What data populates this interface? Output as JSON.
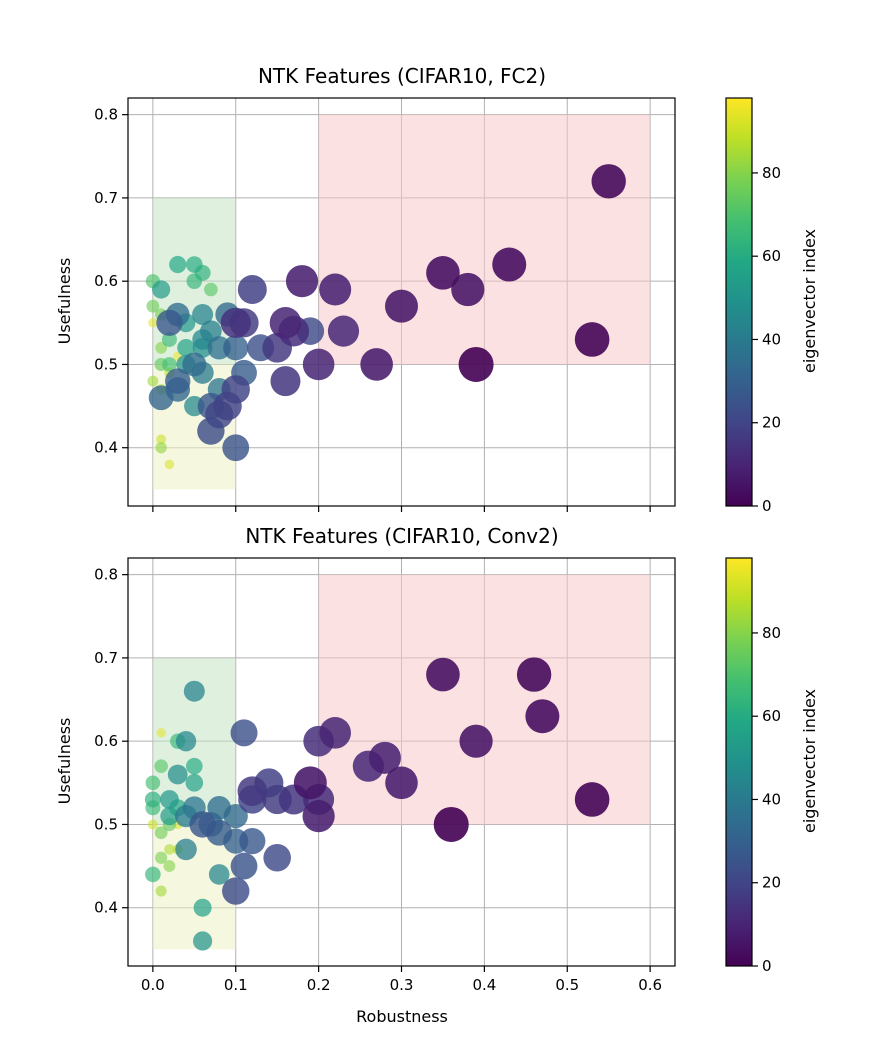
{
  "chart_data": [
    {
      "type": "scatter",
      "title": "NTK Features (CIFAR10, FC2)",
      "xlabel": "",
      "ylabel": "Usefulness",
      "xlim": [
        -0.03,
        0.63
      ],
      "ylim": [
        0.33,
        0.82
      ],
      "xticks": [
        0.0,
        0.1,
        0.2,
        0.3,
        0.4,
        0.5,
        0.6
      ],
      "xtick_labels": [
        "",
        "",
        "",
        "",
        "",
        "",
        ""
      ],
      "yticks": [
        0.4,
        0.5,
        0.6,
        0.7,
        0.8
      ],
      "ytick_labels": [
        "0.4",
        "0.5",
        "0.6",
        "0.7",
        "0.8"
      ],
      "grid": true,
      "colorbar": {
        "label": "eigenvector index",
        "range": [
          0,
          98
        ],
        "ticks": [
          0,
          20,
          40,
          60,
          80
        ],
        "tick_labels": [
          "0",
          "20",
          "40",
          "60",
          "80"
        ],
        "colormap": "viridis"
      },
      "regions": [
        {
          "x": [
            0.2,
            0.6
          ],
          "y": [
            0.5,
            0.8
          ],
          "color": "#f8c8c8"
        },
        {
          "x": [
            0.0,
            0.1
          ],
          "y": [
            0.5,
            0.7
          ],
          "color": "#c4e4c4"
        },
        {
          "x": [
            0.0,
            0.1
          ],
          "y": [
            0.35,
            0.5
          ],
          "color": "#eef1c4"
        }
      ],
      "points": [
        {
          "x": 0.55,
          "y": 0.72,
          "c": 2
        },
        {
          "x": 0.43,
          "y": 0.62,
          "c": 3
        },
        {
          "x": 0.35,
          "y": 0.61,
          "c": 4
        },
        {
          "x": 0.38,
          "y": 0.59,
          "c": 5
        },
        {
          "x": 0.53,
          "y": 0.53,
          "c": 1
        },
        {
          "x": 0.39,
          "y": 0.5,
          "c": 0
        },
        {
          "x": 0.3,
          "y": 0.57,
          "c": 6
        },
        {
          "x": 0.27,
          "y": 0.5,
          "c": 7
        },
        {
          "x": 0.18,
          "y": 0.6,
          "c": 8
        },
        {
          "x": 0.22,
          "y": 0.59,
          "c": 9
        },
        {
          "x": 0.2,
          "y": 0.5,
          "c": 10
        },
        {
          "x": 0.23,
          "y": 0.54,
          "c": 11
        },
        {
          "x": 0.16,
          "y": 0.55,
          "c": 10
        },
        {
          "x": 0.17,
          "y": 0.54,
          "c": 13
        },
        {
          "x": 0.19,
          "y": 0.54,
          "c": 22
        },
        {
          "x": 0.16,
          "y": 0.48,
          "c": 15
        },
        {
          "x": 0.15,
          "y": 0.52,
          "c": 16
        },
        {
          "x": 0.12,
          "y": 0.59,
          "c": 18
        },
        {
          "x": 0.13,
          "y": 0.52,
          "c": 24
        },
        {
          "x": 0.1,
          "y": 0.55,
          "c": 14
        },
        {
          "x": 0.11,
          "y": 0.55,
          "c": 17
        },
        {
          "x": 0.1,
          "y": 0.47,
          "c": 20
        },
        {
          "x": 0.11,
          "y": 0.49,
          "c": 28
        },
        {
          "x": 0.1,
          "y": 0.4,
          "c": 25
        },
        {
          "x": 0.1,
          "y": 0.52,
          "c": 30
        },
        {
          "x": 0.09,
          "y": 0.56,
          "c": 33
        },
        {
          "x": 0.08,
          "y": 0.52,
          "c": 36
        },
        {
          "x": 0.09,
          "y": 0.45,
          "c": 19
        },
        {
          "x": 0.08,
          "y": 0.44,
          "c": 21
        },
        {
          "x": 0.07,
          "y": 0.42,
          "c": 23
        },
        {
          "x": 0.07,
          "y": 0.45,
          "c": 26
        },
        {
          "x": 0.08,
          "y": 0.47,
          "c": 38
        },
        {
          "x": 0.07,
          "y": 0.54,
          "c": 42
        },
        {
          "x": 0.06,
          "y": 0.56,
          "c": 44
        },
        {
          "x": 0.06,
          "y": 0.49,
          "c": 40
        },
        {
          "x": 0.05,
          "y": 0.45,
          "c": 46
        },
        {
          "x": 0.06,
          "y": 0.52,
          "c": 48
        },
        {
          "x": 0.05,
          "y": 0.5,
          "c": 34
        },
        {
          "x": 0.04,
          "y": 0.5,
          "c": 50
        },
        {
          "x": 0.03,
          "y": 0.48,
          "c": 29
        },
        {
          "x": 0.03,
          "y": 0.47,
          "c": 32
        },
        {
          "x": 0.03,
          "y": 0.56,
          "c": 35
        },
        {
          "x": 0.02,
          "y": 0.55,
          "c": 27
        },
        {
          "x": 0.04,
          "y": 0.55,
          "c": 52
        },
        {
          "x": 0.03,
          "y": 0.62,
          "c": 58
        },
        {
          "x": 0.05,
          "y": 0.62,
          "c": 60
        },
        {
          "x": 0.06,
          "y": 0.61,
          "c": 62
        },
        {
          "x": 0.05,
          "y": 0.6,
          "c": 64
        },
        {
          "x": 0.07,
          "y": 0.59,
          "c": 72
        },
        {
          "x": 0.01,
          "y": 0.59,
          "c": 54
        },
        {
          "x": 0.0,
          "y": 0.6,
          "c": 70
        },
        {
          "x": 0.0,
          "y": 0.57,
          "c": 76
        },
        {
          "x": 0.01,
          "y": 0.56,
          "c": 78
        },
        {
          "x": 0.02,
          "y": 0.53,
          "c": 66
        },
        {
          "x": 0.04,
          "y": 0.52,
          "c": 56
        },
        {
          "x": 0.01,
          "y": 0.52,
          "c": 80
        },
        {
          "x": 0.01,
          "y": 0.5,
          "c": 74
        },
        {
          "x": 0.02,
          "y": 0.5,
          "c": 68
        },
        {
          "x": 0.0,
          "y": 0.48,
          "c": 84
        },
        {
          "x": 0.01,
          "y": 0.47,
          "c": 86
        },
        {
          "x": 0.01,
          "y": 0.46,
          "c": 31
        },
        {
          "x": 0.02,
          "y": 0.49,
          "c": 88
        },
        {
          "x": 0.01,
          "y": 0.41,
          "c": 90
        },
        {
          "x": 0.01,
          "y": 0.4,
          "c": 82
        },
        {
          "x": 0.02,
          "y": 0.38,
          "c": 92
        },
        {
          "x": 0.0,
          "y": 0.55,
          "c": 94
        },
        {
          "x": 0.03,
          "y": 0.51,
          "c": 96
        },
        {
          "x": 0.06,
          "y": 0.53,
          "c": 45
        }
      ]
    },
    {
      "type": "scatter",
      "title": "NTK Features (CIFAR10, Conv2)",
      "xlabel": "Robustness",
      "ylabel": "Usefulness",
      "xlim": [
        -0.03,
        0.63
      ],
      "ylim": [
        0.33,
        0.82
      ],
      "xticks": [
        0.0,
        0.1,
        0.2,
        0.3,
        0.4,
        0.5,
        0.6
      ],
      "xtick_labels": [
        "0.0",
        "0.1",
        "0.2",
        "0.3",
        "0.4",
        "0.5",
        "0.6"
      ],
      "yticks": [
        0.4,
        0.5,
        0.6,
        0.7,
        0.8
      ],
      "ytick_labels": [
        "0.4",
        "0.5",
        "0.6",
        "0.7",
        "0.8"
      ],
      "grid": true,
      "colorbar": {
        "label": "eigenvector index",
        "range": [
          0,
          98
        ],
        "ticks": [
          0,
          20,
          40,
          60,
          80
        ],
        "tick_labels": [
          "0",
          "20",
          "40",
          "60",
          "80"
        ],
        "colormap": "viridis"
      },
      "regions": [
        {
          "x": [
            0.2,
            0.6
          ],
          "y": [
            0.5,
            0.8
          ],
          "color": "#f8c8c8"
        },
        {
          "x": [
            0.0,
            0.1
          ],
          "y": [
            0.5,
            0.7
          ],
          "color": "#c4e4c4"
        },
        {
          "x": [
            0.0,
            0.1
          ],
          "y": [
            0.35,
            0.5
          ],
          "color": "#eef1c4"
        }
      ],
      "points": [
        {
          "x": 0.35,
          "y": 0.68,
          "c": 4
        },
        {
          "x": 0.46,
          "y": 0.68,
          "c": 2
        },
        {
          "x": 0.47,
          "y": 0.63,
          "c": 3
        },
        {
          "x": 0.39,
          "y": 0.6,
          "c": 5
        },
        {
          "x": 0.53,
          "y": 0.53,
          "c": 1
        },
        {
          "x": 0.36,
          "y": 0.5,
          "c": 0
        },
        {
          "x": 0.3,
          "y": 0.55,
          "c": 7
        },
        {
          "x": 0.28,
          "y": 0.58,
          "c": 9
        },
        {
          "x": 0.26,
          "y": 0.57,
          "c": 11
        },
        {
          "x": 0.22,
          "y": 0.61,
          "c": 10
        },
        {
          "x": 0.2,
          "y": 0.6,
          "c": 13
        },
        {
          "x": 0.19,
          "y": 0.55,
          "c": 6
        },
        {
          "x": 0.2,
          "y": 0.53,
          "c": 12
        },
        {
          "x": 0.2,
          "y": 0.51,
          "c": 8
        },
        {
          "x": 0.17,
          "y": 0.53,
          "c": 15
        },
        {
          "x": 0.15,
          "y": 0.53,
          "c": 17
        },
        {
          "x": 0.14,
          "y": 0.55,
          "c": 18
        },
        {
          "x": 0.12,
          "y": 0.54,
          "c": 16
        },
        {
          "x": 0.12,
          "y": 0.53,
          "c": 20
        },
        {
          "x": 0.11,
          "y": 0.61,
          "c": 24
        },
        {
          "x": 0.15,
          "y": 0.46,
          "c": 22
        },
        {
          "x": 0.11,
          "y": 0.45,
          "c": 25
        },
        {
          "x": 0.12,
          "y": 0.48,
          "c": 27
        },
        {
          "x": 0.1,
          "y": 0.42,
          "c": 23
        },
        {
          "x": 0.1,
          "y": 0.48,
          "c": 30
        },
        {
          "x": 0.1,
          "y": 0.51,
          "c": 33
        },
        {
          "x": 0.08,
          "y": 0.52,
          "c": 35
        },
        {
          "x": 0.08,
          "y": 0.49,
          "c": 28
        },
        {
          "x": 0.08,
          "y": 0.44,
          "c": 45
        },
        {
          "x": 0.06,
          "y": 0.5,
          "c": 26
        },
        {
          "x": 0.05,
          "y": 0.52,
          "c": 38
        },
        {
          "x": 0.04,
          "y": 0.51,
          "c": 40
        },
        {
          "x": 0.04,
          "y": 0.47,
          "c": 42
        },
        {
          "x": 0.06,
          "y": 0.4,
          "c": 55
        },
        {
          "x": 0.06,
          "y": 0.36,
          "c": 50
        },
        {
          "x": 0.05,
          "y": 0.66,
          "c": 44
        },
        {
          "x": 0.04,
          "y": 0.6,
          "c": 46
        },
        {
          "x": 0.03,
          "y": 0.6,
          "c": 65
        },
        {
          "x": 0.05,
          "y": 0.57,
          "c": 60
        },
        {
          "x": 0.03,
          "y": 0.56,
          "c": 48
        },
        {
          "x": 0.02,
          "y": 0.53,
          "c": 52
        },
        {
          "x": 0.03,
          "y": 0.52,
          "c": 58
        },
        {
          "x": 0.0,
          "y": 0.53,
          "c": 62
        },
        {
          "x": 0.0,
          "y": 0.52,
          "c": 66
        },
        {
          "x": 0.0,
          "y": 0.55,
          "c": 68
        },
        {
          "x": 0.01,
          "y": 0.57,
          "c": 72
        },
        {
          "x": 0.02,
          "y": 0.5,
          "c": 74
        },
        {
          "x": 0.01,
          "y": 0.49,
          "c": 76
        },
        {
          "x": 0.01,
          "y": 0.46,
          "c": 78
        },
        {
          "x": 0.02,
          "y": 0.45,
          "c": 80
        },
        {
          "x": 0.0,
          "y": 0.44,
          "c": 64
        },
        {
          "x": 0.01,
          "y": 0.42,
          "c": 84
        },
        {
          "x": 0.02,
          "y": 0.47,
          "c": 86
        },
        {
          "x": 0.01,
          "y": 0.61,
          "c": 94
        },
        {
          "x": 0.03,
          "y": 0.47,
          "c": 88
        },
        {
          "x": 0.0,
          "y": 0.5,
          "c": 90
        },
        {
          "x": 0.05,
          "y": 0.55,
          "c": 56
        },
        {
          "x": 0.02,
          "y": 0.51,
          "c": 54
        },
        {
          "x": 0.03,
          "y": 0.5,
          "c": 92
        },
        {
          "x": 0.07,
          "y": 0.5,
          "c": 32
        }
      ]
    }
  ]
}
